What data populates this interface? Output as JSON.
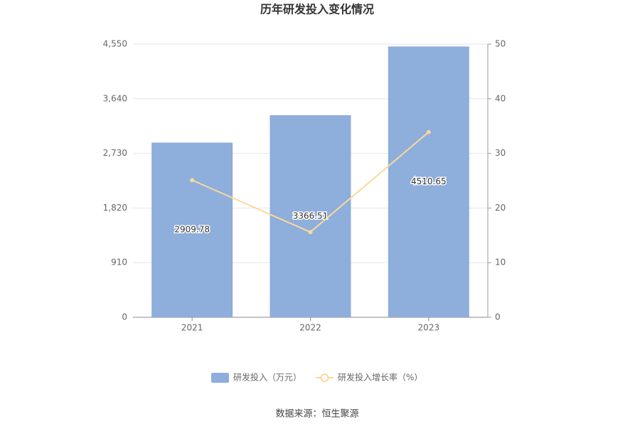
{
  "chart_data": {
    "type": "bar",
    "title": "历年研发投入变化情况",
    "categories": [
      "2021",
      "2022",
      "2023"
    ],
    "series": [
      {
        "name": "研发投入（万元）",
        "color": "#8eaedb",
        "values": [
          2909.78,
          3366.51,
          4510.65
        ]
      },
      {
        "name": "研发投入增长率（%）",
        "type": "line",
        "axis": "y2",
        "color": "#fad89b",
        "values": [
          25.1,
          15.6,
          33.9
        ]
      }
    ],
    "ylim": [
      0,
      4550
    ],
    "yticks": [
      0,
      910,
      {
        "value": 1820,
        "label": "1,820"
      },
      {
        "value": 2730,
        "label": "2,730"
      },
      {
        "value": 3640,
        "label": "3,640"
      },
      {
        "value": 4550,
        "label": "4,550"
      }
    ],
    "y2lim": [
      0,
      50
    ],
    "y2ticks": [
      0,
      10,
      20,
      30,
      40,
      50
    ],
    "grid": true,
    "source": "数据来源：恒生聚源"
  }
}
